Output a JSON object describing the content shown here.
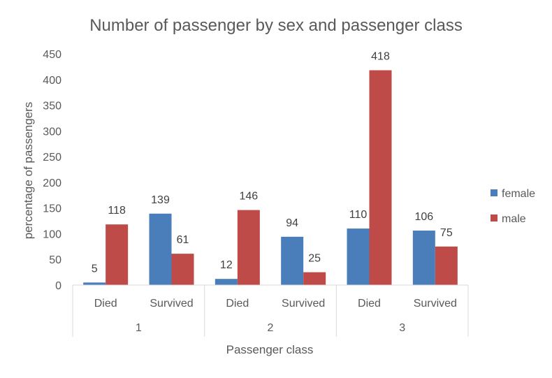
{
  "chart_data": {
    "type": "bar",
    "title": "Number of passenger by sex and passenger class",
    "xlabel": "Passenger class",
    "ylabel": "percentage of passengers",
    "ylim": [
      0,
      450
    ],
    "yticks": [
      0,
      50,
      100,
      150,
      200,
      250,
      300,
      350,
      400,
      450
    ],
    "grid": false,
    "legend_position": "right",
    "groups": [
      {
        "label": "1",
        "categories": [
          "Died",
          "Survived"
        ]
      },
      {
        "label": "2",
        "categories": [
          "Died",
          "Survived"
        ]
      },
      {
        "label": "3",
        "categories": [
          "Died",
          "Survived"
        ]
      }
    ],
    "categories": [
      "Died",
      "Survived",
      "Died",
      "Survived",
      "Died",
      "Survived"
    ],
    "series": [
      {
        "name": "female",
        "color": "#4a7ebb",
        "values": [
          5,
          139,
          12,
          94,
          110,
          106
        ]
      },
      {
        "name": "male",
        "color": "#be4b48",
        "values": [
          118,
          61,
          146,
          25,
          418,
          75
        ]
      }
    ]
  }
}
